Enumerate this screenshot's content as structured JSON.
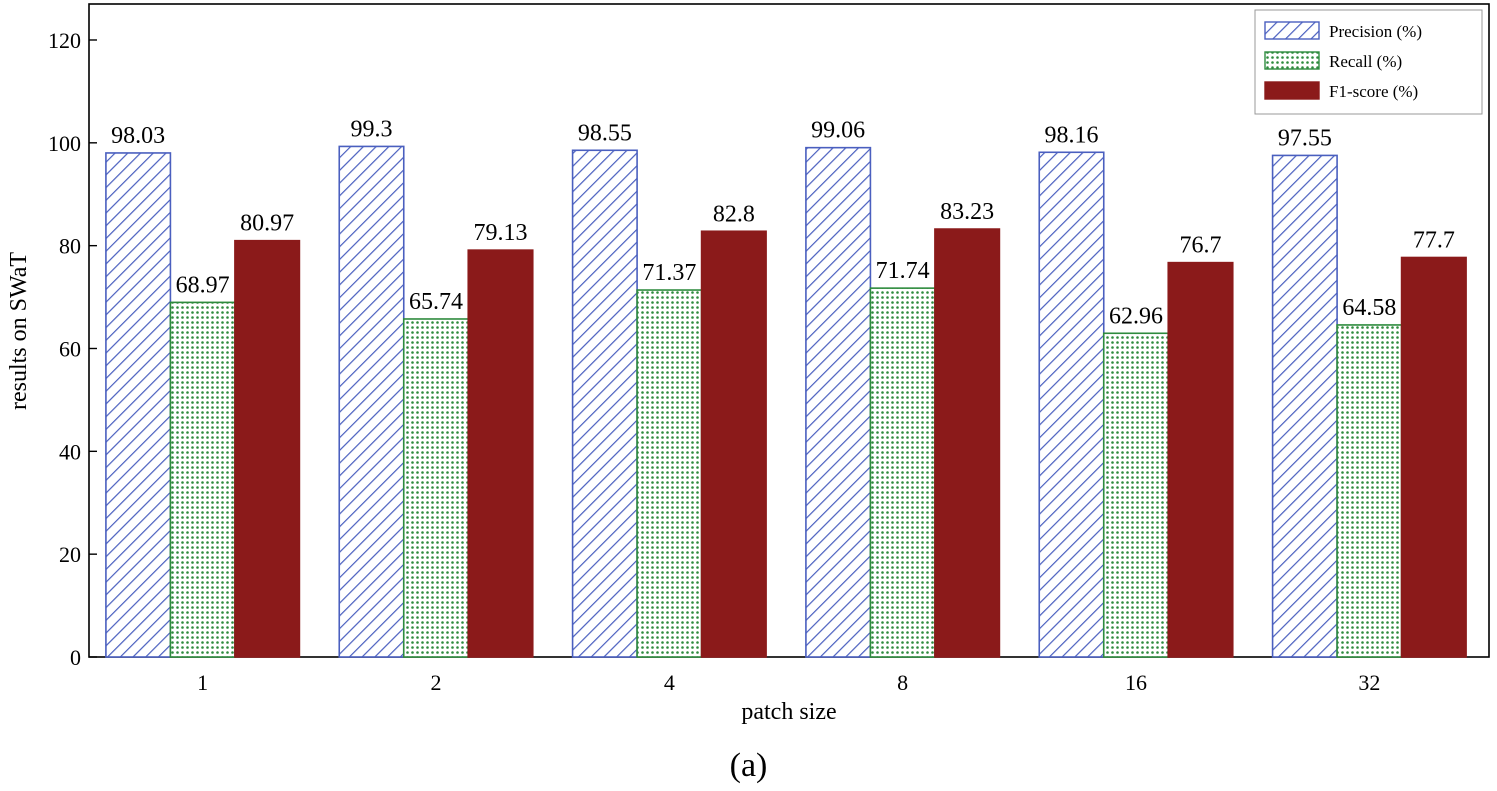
{
  "chart_data": {
    "type": "bar",
    "title": "",
    "xlabel": "patch size",
    "ylabel": "results on SWaT",
    "categories": [
      "1",
      "2",
      "4",
      "8",
      "16",
      "32"
    ],
    "ylim": [
      0,
      127
    ],
    "yticks": [
      0,
      20,
      40,
      60,
      80,
      100,
      120
    ],
    "grid": false,
    "legend_position": "top-right",
    "series": [
      {
        "name": "Precision (%)",
        "values": [
          98.03,
          99.3,
          98.55,
          99.06,
          98.16,
          97.55
        ],
        "labels": [
          "98.03",
          "99.3",
          "98.55",
          "99.06",
          "98.16",
          "97.55"
        ],
        "color": "#4a5fbf",
        "fill": "hatch"
      },
      {
        "name": "Recall (%)",
        "values": [
          68.97,
          65.74,
          71.37,
          71.74,
          62.96,
          64.58
        ],
        "labels": [
          "68.97",
          "65.74",
          "71.37",
          "71.74",
          "62.96",
          "64.58"
        ],
        "color": "#2e8b3e",
        "fill": "dots"
      },
      {
        "name": "F1-score (%)",
        "values": [
          80.97,
          79.13,
          82.8,
          83.23,
          76.7,
          77.7
        ],
        "labels": [
          "80.97",
          "79.13",
          "82.8",
          "83.23",
          "76.7",
          "77.7"
        ],
        "color": "#8b1a1a",
        "fill": "solid"
      }
    ]
  },
  "caption": "(a)"
}
